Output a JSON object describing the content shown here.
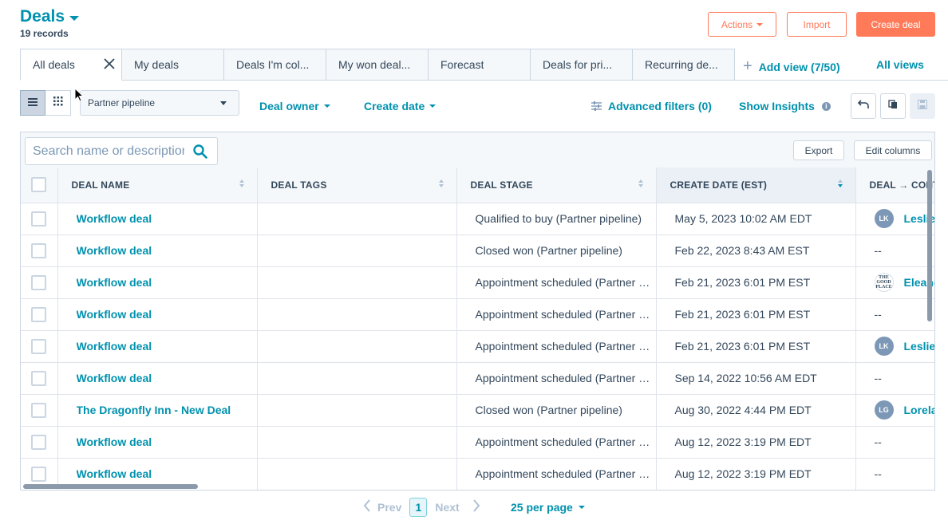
{
  "header": {
    "title": "Deals",
    "record_count": "19 records",
    "actions_label": "Actions",
    "import_label": "Import",
    "create_label": "Create deal"
  },
  "tabs": [
    {
      "label": "All deals"
    },
    {
      "label": "My deals"
    },
    {
      "label": "Deals I'm col..."
    },
    {
      "label": "My won deal..."
    },
    {
      "label": "Forecast"
    },
    {
      "label": "Deals for pri..."
    },
    {
      "label": "Recurring de..."
    }
  ],
  "add_view_label": "Add view (7/50)",
  "all_views_label": "All views",
  "toolbar": {
    "pipeline_value": "Partner pipeline",
    "deal_owner_label": "Deal owner",
    "create_date_label": "Create date",
    "advanced_filters_label": "Advanced filters (0)",
    "show_insights_label": "Show Insights"
  },
  "table_tools": {
    "search_placeholder": "Search name or description",
    "export_label": "Export",
    "edit_columns_label": "Edit columns"
  },
  "columns": [
    "DEAL NAME",
    "DEAL TAGS",
    "DEAL STAGE",
    "CREATE DATE (EST)",
    "DEAL → CONTACT"
  ],
  "rows": [
    {
      "name": "Workflow deal",
      "stage": "Qualified to buy (Partner pipeline)",
      "date": "May 5, 2023 10:02 AM EDT",
      "contact_initials": "LK",
      "contact": "Leslie"
    },
    {
      "name": "Workflow deal",
      "stage": "Closed won (Partner pipeline)",
      "date": "Feb 22, 2023 8:43 AM EST",
      "contact_initials": "",
      "contact": "--"
    },
    {
      "name": "Workflow deal",
      "stage": "Appointment scheduled (Partner pipeline)",
      "date": "Feb 21, 2023 6:01 PM EST",
      "contact_initials": "THE GOOD PLACE",
      "contact": "Eleanor"
    },
    {
      "name": "Workflow deal",
      "stage": "Appointment scheduled (Partner pipeline)",
      "date": "Feb 21, 2023 6:01 PM EST",
      "contact_initials": "",
      "contact": "--"
    },
    {
      "name": "Workflow deal",
      "stage": "Appointment scheduled (Partner pipeline)",
      "date": "Feb 21, 2023 6:01 PM EST",
      "contact_initials": "LK",
      "contact": "Leslie"
    },
    {
      "name": "Workflow deal",
      "stage": "Appointment scheduled (Partner pipeline)",
      "date": "Sep 14, 2022 10:56 AM EDT",
      "contact_initials": "",
      "contact": "--"
    },
    {
      "name": "The Dragonfly Inn - New Deal",
      "stage": "Closed won (Partner pipeline)",
      "date": "Aug 30, 2022 4:44 PM EDT",
      "contact_initials": "LG",
      "contact": "Lorelai"
    },
    {
      "name": "Workflow deal",
      "stage": "Appointment scheduled (Partner pipeline)",
      "date": "Aug 12, 2022 3:19 PM EDT",
      "contact_initials": "",
      "contact": "--"
    },
    {
      "name": "Workflow deal",
      "stage": "Appointment scheduled (Partner pipeline)",
      "date": "Aug 12, 2022 3:19 PM EDT",
      "contact_initials": "",
      "contact": "--"
    }
  ],
  "pagination": {
    "prev_label": "Prev",
    "current_page": "1",
    "next_label": "Next",
    "per_page_label": "25 per page"
  }
}
